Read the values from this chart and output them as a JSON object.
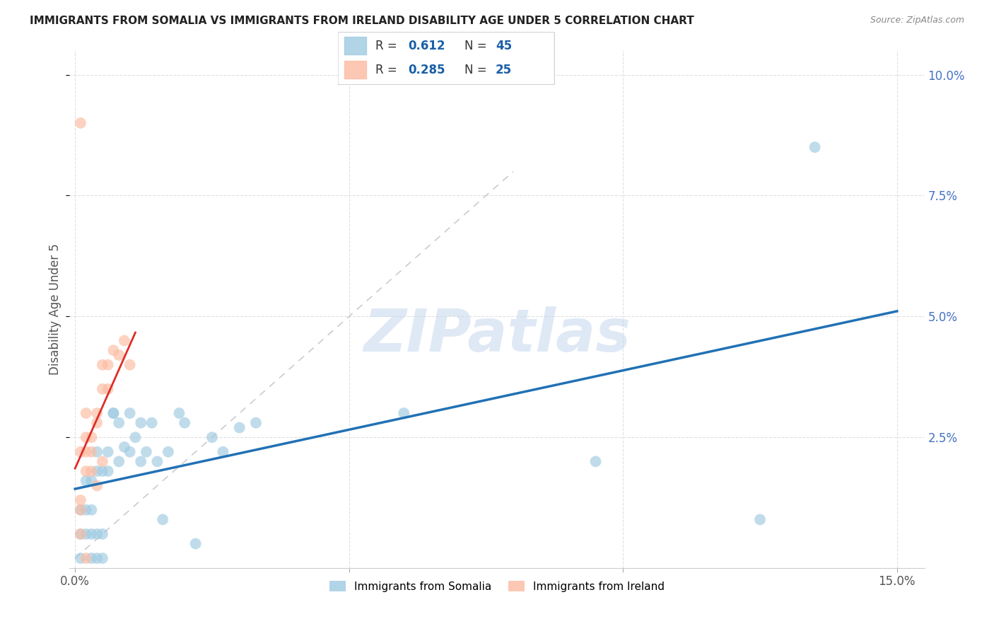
{
  "title": "IMMIGRANTS FROM SOMALIA VS IMMIGRANTS FROM IRELAND DISABILITY AGE UNDER 5 CORRELATION CHART",
  "source": "Source: ZipAtlas.com",
  "ylabel": "Disability Age Under 5",
  "xlim": [
    -0.001,
    0.155
  ],
  "ylim": [
    -0.002,
    0.105
  ],
  "xticks": [
    0.0,
    0.05,
    0.1,
    0.15
  ],
  "xticklabels": [
    "0.0%",
    "",
    "",
    "15.0%"
  ],
  "yticks": [
    0.025,
    0.05,
    0.075,
    0.1
  ],
  "yticklabels": [
    "2.5%",
    "5.0%",
    "7.5%",
    "10.0%"
  ],
  "somalia_color": "#9ecae1",
  "ireland_color": "#fcbba1",
  "somalia_line_color": "#2171b5",
  "ireland_line_color": "#de2d26",
  "somalia_R": 0.612,
  "somalia_N": 45,
  "ireland_R": 0.285,
  "ireland_N": 25,
  "somalia_x": [
    0.001,
    0.001,
    0.001,
    0.002,
    0.002,
    0.002,
    0.003,
    0.003,
    0.003,
    0.003,
    0.004,
    0.004,
    0.004,
    0.004,
    0.005,
    0.005,
    0.005,
    0.006,
    0.006,
    0.007,
    0.007,
    0.008,
    0.008,
    0.009,
    0.01,
    0.01,
    0.011,
    0.012,
    0.012,
    0.013,
    0.014,
    0.015,
    0.016,
    0.017,
    0.019,
    0.02,
    0.022,
    0.025,
    0.027,
    0.03,
    0.033,
    0.06,
    0.095,
    0.125,
    0.135
  ],
  "somalia_y": [
    0.005,
    0.01,
    0.0,
    0.005,
    0.01,
    0.016,
    0.005,
    0.01,
    0.0,
    0.016,
    0.005,
    0.018,
    0.022,
    0.0,
    0.005,
    0.018,
    0.0,
    0.018,
    0.022,
    0.03,
    0.03,
    0.028,
    0.02,
    0.023,
    0.03,
    0.022,
    0.025,
    0.028,
    0.02,
    0.022,
    0.028,
    0.02,
    0.008,
    0.022,
    0.03,
    0.028,
    0.003,
    0.025,
    0.022,
    0.027,
    0.028,
    0.03,
    0.02,
    0.008,
    0.085
  ],
  "ireland_x": [
    0.001,
    0.001,
    0.001,
    0.001,
    0.001,
    0.002,
    0.002,
    0.002,
    0.002,
    0.002,
    0.003,
    0.003,
    0.003,
    0.004,
    0.004,
    0.004,
    0.005,
    0.005,
    0.005,
    0.006,
    0.006,
    0.007,
    0.008,
    0.009,
    0.01
  ],
  "ireland_y": [
    0.005,
    0.01,
    0.012,
    0.022,
    0.09,
    0.018,
    0.022,
    0.025,
    0.03,
    0.0,
    0.018,
    0.022,
    0.025,
    0.03,
    0.028,
    0.015,
    0.035,
    0.02,
    0.04,
    0.035,
    0.04,
    0.043,
    0.042,
    0.045,
    0.04
  ],
  "background_color": "#ffffff",
  "grid_color": "#e0e0e0",
  "watermark_text": "ZIPatlas",
  "legend_color": "#1a5fa8",
  "ref_line_end": 0.08
}
